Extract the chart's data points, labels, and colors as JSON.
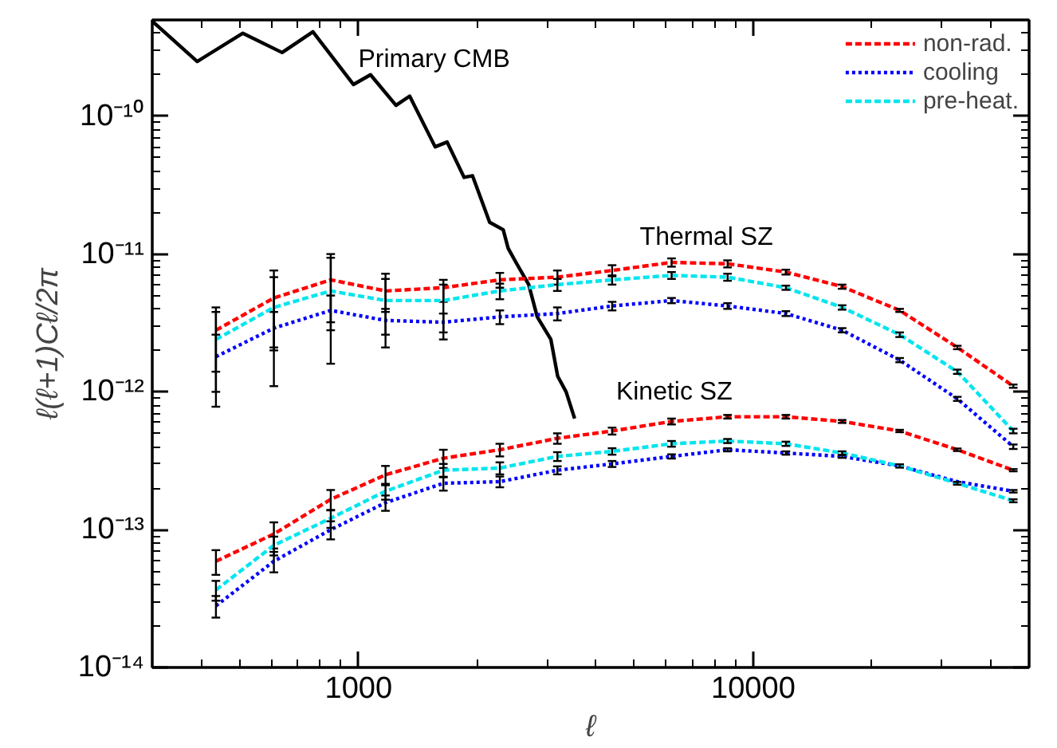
{
  "chart_data": {
    "type": "line",
    "xlabel": "ℓ",
    "ylabel": "ℓ(ℓ+1)Cℓ/2π",
    "log": "xy",
    "grid": false,
    "legend": "top right",
    "marker": "none",
    "xlim": [
      300,
      50000
    ],
    "ylim": [
      1e-14,
      5e-10
    ],
    "xticks": [
      1000,
      10000
    ],
    "yticks": [
      {
        "value": 1e-14,
        "label": "10⁻¹⁴"
      },
      {
        "value": 1e-13,
        "label": "10⁻¹³"
      },
      {
        "value": 1e-12,
        "label": "10⁻¹²"
      },
      {
        "value": 1e-11,
        "label": "10⁻¹¹"
      },
      {
        "value": 1e-10,
        "label": "10⁻¹⁰"
      }
    ],
    "x": [
      435,
      610,
      850,
      1170,
      1640,
      2280,
      3190,
      4390,
      6210,
      8610,
      12100,
      16800,
      23500,
      32900,
      45600
    ],
    "series": [
      {
        "color": "#000000",
        "line_style": "solid",
        "x": [
          300,
          390,
          509,
          640,
          766,
          970,
          1072,
          1244,
          1347,
          1563,
          1676,
          1851,
          1944,
          2148,
          2325,
          2393,
          2516,
          2698,
          2836,
          3070,
          3194,
          3356,
          3527
        ],
        "values": [
          4.9e-10,
          2.5e-10,
          4e-10,
          2.9e-10,
          4.1e-10,
          1.7e-10,
          2e-10,
          1.2e-10,
          1.4e-10,
          6e-11,
          6.5e-11,
          3.6e-11,
          3.7e-11,
          1.7e-11,
          1.5e-11,
          1.1e-11,
          8.5e-12,
          6e-12,
          3.5e-12,
          2.4e-12,
          1.3e-12,
          1e-12,
          6.4e-13
        ]
      },
      {
        "name": "non-rad.",
        "color": "#ff0000",
        "line_style": "dashed",
        "values": [
          2.8e-12,
          4.8e-12,
          6.5e-12,
          5.4e-12,
          5.7e-12,
          6.5e-12,
          6.8e-12,
          7.6e-12,
          8.7e-12,
          8.5e-12,
          7.4e-12,
          5.8e-12,
          3.9e-12,
          2.1e-12,
          1.1e-12
        ],
        "errors": [
          [
            1.4e-12,
            4.1e-12
          ],
          [
            2.1e-12,
            7.6e-12
          ],
          [
            3.2e-12,
            1e-11
          ],
          [
            3.8e-12,
            7.2e-12
          ],
          [
            4.5e-12,
            6.5e-12
          ],
          8e-13,
          8e-13,
          7e-13,
          6e-13,
          5e-13,
          3e-13,
          2e-13,
          1e-13,
          6e-14,
          3e-14
        ]
      },
      {
        "name": "cooling",
        "color": "#0000ff",
        "line_style": "dotted",
        "values": [
          1.8e-12,
          2.9e-12,
          3.9e-12,
          3.3e-12,
          3.2e-12,
          3.5e-12,
          3.7e-12,
          4.2e-12,
          4.6e-12,
          4.2e-12,
          3.7e-12,
          2.8e-12,
          1.7e-12,
          8.9e-13,
          4e-13
        ],
        "errors": [
          8e-13,
          9e-13,
          1.1e-12,
          7e-13,
          5e-13,
          4e-13,
          4e-13,
          3e-13,
          2e-13,
          2e-13,
          1.5e-13,
          1e-13,
          6e-14,
          3e-14,
          1.5e-14
        ]
      },
      {
        "name": "pre-heat.",
        "color": "#00e5ee",
        "line_style": "dashed",
        "values": [
          2.4e-12,
          4.1e-12,
          5.4e-12,
          4.6e-12,
          4.6e-12,
          5.4e-12,
          6e-12,
          6.5e-12,
          7e-12,
          6.8e-12,
          5.7e-12,
          4.1e-12,
          2.6e-12,
          1.4e-12,
          5.2e-13
        ],
        "errors": [
          [
            7.8e-13,
            3.8e-12
          ],
          [
            1.1e-12,
            6.8e-12
          ],
          [
            1.6e-12,
            9.4e-12
          ],
          [
            2.1e-12,
            6.6e-12
          ],
          [
            2.4e-12,
            6e-12
          ],
          7e-13,
          6e-13,
          5e-13,
          4e-13,
          4e-13,
          2e-13,
          1.5e-13,
          1e-13,
          5e-14,
          2e-14
        ]
      },
      {
        "color": "#ff0000",
        "line_style": "dashed",
        "values": [
          5.9e-14,
          9.3e-14,
          1.66e-13,
          2.5e-13,
          3.3e-13,
          3.8e-13,
          4.6e-13,
          5.2e-13,
          6.1e-13,
          6.6e-13,
          6.6e-13,
          6.1e-13,
          5.2e-13,
          3.8e-13,
          2.7e-13
        ],
        "errors": [
          1.2e-14,
          2e-14,
          2.8e-14,
          4e-14,
          5e-14,
          4e-14,
          4e-14,
          3e-14,
          3e-14,
          2e-14,
          2e-14,
          1.5e-14,
          1e-14,
          8e-15,
          5e-15
        ]
      },
      {
        "color": "#0000ff",
        "line_style": "dotted",
        "values": [
          2.8e-14,
          5.9e-14,
          1e-13,
          1.57e-13,
          2.17e-13,
          2.23e-13,
          2.7e-13,
          3e-13,
          3.4e-13,
          3.8e-13,
          3.6e-13,
          3.4e-13,
          2.9e-13,
          2.23e-13,
          1.9e-13
        ],
        "errors": [
          5e-15,
          1e-14,
          1.5e-14,
          2e-14,
          2.5e-14,
          2e-14,
          1.8e-14,
          1.5e-14,
          1.2e-14,
          1e-14,
          1e-14,
          8e-15,
          null,
          null,
          4e-15
        ]
      },
      {
        "color": "#00e5ee",
        "line_style": "dashed",
        "values": [
          3.65e-14,
          7.7e-14,
          1.21e-13,
          1.9e-13,
          2.7e-13,
          2.8e-13,
          3.4e-13,
          3.7e-13,
          4.2e-13,
          4.4e-13,
          4.2e-13,
          3.6e-13,
          2.9e-13,
          2.17e-13,
          1.62e-13
        ],
        "errors": [
          6e-15,
          1.2e-14,
          1.8e-14,
          2.5e-14,
          3e-14,
          2.8e-14,
          2.5e-14,
          2e-14,
          2e-14,
          1.5e-14,
          1.5e-14,
          1e-14,
          8e-15,
          5e-15,
          4e-15
        ]
      }
    ],
    "annotations": [
      "Primary CMB",
      "Thermal SZ",
      "Kinetic SZ"
    ]
  }
}
